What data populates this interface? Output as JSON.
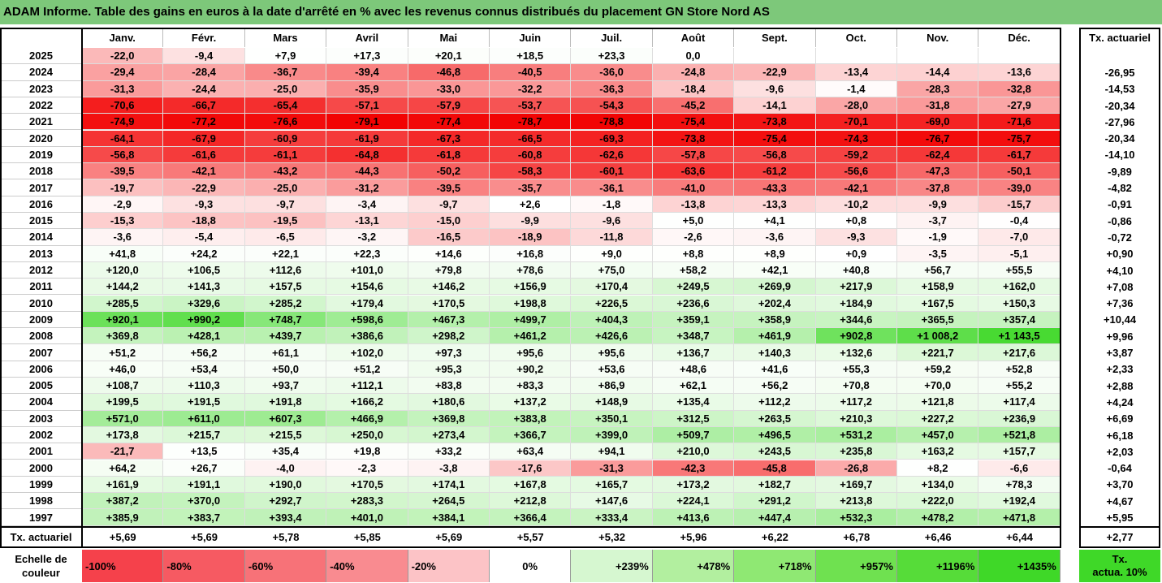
{
  "title": "ADAM Informe. Table des gains en euros à la date d'arrêté en % avec les revenus connus distribués du placement GN Store Nord AS",
  "chart_data": {
    "type": "table",
    "columns": [
      "Janv.",
      "Févr.",
      "Mars",
      "Avril",
      "Mai",
      "Juin",
      "Juil.",
      "Août",
      "Sept.",
      "Oct.",
      "Nov.",
      "Déc."
    ],
    "tx_header": "Tx. actuariel",
    "rows": [
      {
        "year": "2025",
        "values": [
          "-22,0",
          "-9,4",
          "+7,9",
          "+17,3",
          "+20,1",
          "+18,5",
          "+23,3",
          "0,0",
          "",
          "",
          "",
          ""
        ],
        "tx": ""
      },
      {
        "year": "2024",
        "values": [
          "-29,4",
          "-28,4",
          "-36,7",
          "-39,4",
          "-46,8",
          "-40,5",
          "-36,0",
          "-24,8",
          "-22,9",
          "-13,4",
          "-14,4",
          "-13,6"
        ],
        "tx": "-26,95"
      },
      {
        "year": "2023",
        "values": [
          "-31,3",
          "-24,4",
          "-25,0",
          "-35,9",
          "-33,0",
          "-32,2",
          "-36,3",
          "-18,4",
          "-9,6",
          "-1,4",
          "-28,3",
          "-32,8"
        ],
        "tx": "-14,53"
      },
      {
        "year": "2022",
        "values": [
          "-70,6",
          "-66,7",
          "-65,4",
          "-57,1",
          "-57,9",
          "-53,7",
          "-54,3",
          "-45,2",
          "-14,1",
          "-28,0",
          "-31,8",
          "-27,9"
        ],
        "tx": "-20,34"
      },
      {
        "year": "2021",
        "values": [
          "-74,9",
          "-77,2",
          "-76,6",
          "-79,1",
          "-77,4",
          "-78,7",
          "-78,8",
          "-75,4",
          "-73,8",
          "-70,1",
          "-69,0",
          "-71,6"
        ],
        "tx": "-27,96"
      },
      {
        "year": "2020",
        "values": [
          "-64,1",
          "-67,9",
          "-60,9",
          "-61,9",
          "-67,3",
          "-66,5",
          "-69,3",
          "-73,8",
          "-75,4",
          "-74,3",
          "-76,7",
          "-75,7"
        ],
        "tx": "-20,34"
      },
      {
        "year": "2019",
        "values": [
          "-56,8",
          "-61,6",
          "-61,1",
          "-64,8",
          "-61,8",
          "-60,8",
          "-62,6",
          "-57,8",
          "-56,8",
          "-59,2",
          "-62,4",
          "-61,7"
        ],
        "tx": "-14,10"
      },
      {
        "year": "2018",
        "values": [
          "-39,5",
          "-42,1",
          "-43,2",
          "-44,3",
          "-50,2",
          "-58,3",
          "-60,1",
          "-63,6",
          "-61,2",
          "-56,6",
          "-47,3",
          "-50,1"
        ],
        "tx": "-9,89"
      },
      {
        "year": "2017",
        "values": [
          "-19,7",
          "-22,9",
          "-25,0",
          "-31,2",
          "-39,5",
          "-35,7",
          "-36,1",
          "-41,0",
          "-43,3",
          "-42,1",
          "-37,8",
          "-39,0"
        ],
        "tx": "-4,82"
      },
      {
        "year": "2016",
        "values": [
          "-2,9",
          "-9,3",
          "-9,7",
          "-3,4",
          "-9,7",
          "+2,6",
          "-1,8",
          "-13,8",
          "-13,3",
          "-10,2",
          "-9,9",
          "-15,7"
        ],
        "tx": "-0,91"
      },
      {
        "year": "2015",
        "values": [
          "-15,3",
          "-18,8",
          "-19,5",
          "-13,1",
          "-15,0",
          "-9,9",
          "-9,6",
          "+5,0",
          "+4,1",
          "+0,8",
          "-3,7",
          "-0,4"
        ],
        "tx": "-0,86"
      },
      {
        "year": "2014",
        "values": [
          "-3,6",
          "-5,4",
          "-6,5",
          "-3,2",
          "-16,5",
          "-18,9",
          "-11,8",
          "-2,6",
          "-3,6",
          "-9,3",
          "-1,9",
          "-7,0"
        ],
        "tx": "-0,72"
      },
      {
        "year": "2013",
        "values": [
          "+41,8",
          "+24,2",
          "+22,1",
          "+22,3",
          "+14,6",
          "+16,8",
          "+9,0",
          "+8,8",
          "+8,9",
          "+0,9",
          "-3,5",
          "-5,1"
        ],
        "tx": "+0,90"
      },
      {
        "year": "2012",
        "values": [
          "+120,0",
          "+106,5",
          "+112,6",
          "+101,0",
          "+79,8",
          "+78,6",
          "+75,0",
          "+58,2",
          "+42,1",
          "+40,8",
          "+56,7",
          "+55,5"
        ],
        "tx": "+4,10"
      },
      {
        "year": "2011",
        "values": [
          "+144,2",
          "+141,3",
          "+157,5",
          "+154,6",
          "+146,2",
          "+156,9",
          "+170,4",
          "+249,5",
          "+269,9",
          "+217,9",
          "+158,9",
          "+162,0"
        ],
        "tx": "+7,08"
      },
      {
        "year": "2010",
        "values": [
          "+285,5",
          "+329,6",
          "+285,2",
          "+179,4",
          "+170,5",
          "+198,8",
          "+226,5",
          "+236,6",
          "+202,4",
          "+184,9",
          "+167,5",
          "+150,3"
        ],
        "tx": "+7,36"
      },
      {
        "year": "2009",
        "values": [
          "+920,1",
          "+990,2",
          "+748,7",
          "+598,6",
          "+467,3",
          "+499,7",
          "+404,3",
          "+359,1",
          "+358,9",
          "+344,6",
          "+365,5",
          "+357,4"
        ],
        "tx": "+10,44"
      },
      {
        "year": "2008",
        "values": [
          "+369,8",
          "+428,1",
          "+439,7",
          "+386,6",
          "+298,2",
          "+461,2",
          "+426,6",
          "+348,7",
          "+461,9",
          "+902,8",
          "+1 008,2",
          "+1 143,5"
        ],
        "tx": "+9,96"
      },
      {
        "year": "2007",
        "values": [
          "+51,2",
          "+56,2",
          "+61,1",
          "+102,0",
          "+97,3",
          "+95,6",
          "+95,6",
          "+136,7",
          "+140,3",
          "+132,6",
          "+221,7",
          "+217,6"
        ],
        "tx": "+3,87"
      },
      {
        "year": "2006",
        "values": [
          "+46,0",
          "+53,4",
          "+50,0",
          "+51,2",
          "+95,3",
          "+90,2",
          "+53,6",
          "+48,6",
          "+41,6",
          "+55,3",
          "+59,2",
          "+52,8"
        ],
        "tx": "+2,33"
      },
      {
        "year": "2005",
        "values": [
          "+108,7",
          "+110,3",
          "+93,7",
          "+112,1",
          "+83,8",
          "+83,3",
          "+86,9",
          "+62,1",
          "+56,2",
          "+70,8",
          "+70,0",
          "+55,2"
        ],
        "tx": "+2,88"
      },
      {
        "year": "2004",
        "values": [
          "+199,5",
          "+191,5",
          "+191,8",
          "+166,2",
          "+180,6",
          "+137,2",
          "+148,9",
          "+135,4",
          "+112,2",
          "+117,2",
          "+121,8",
          "+117,4"
        ],
        "tx": "+4,24"
      },
      {
        "year": "2003",
        "values": [
          "+571,0",
          "+611,0",
          "+607,3",
          "+466,9",
          "+369,8",
          "+383,8",
          "+350,1",
          "+312,5",
          "+263,5",
          "+210,3",
          "+227,2",
          "+236,9"
        ],
        "tx": "+6,69"
      },
      {
        "year": "2002",
        "values": [
          "+173,8",
          "+215,7",
          "+215,5",
          "+250,0",
          "+273,4",
          "+366,7",
          "+399,0",
          "+509,7",
          "+496,5",
          "+531,2",
          "+457,0",
          "+521,8"
        ],
        "tx": "+6,18"
      },
      {
        "year": "2001",
        "values": [
          "-21,7",
          "+13,5",
          "+35,4",
          "+19,8",
          "+33,2",
          "+63,4",
          "+94,1",
          "+210,0",
          "+243,5",
          "+235,8",
          "+163,2",
          "+157,7"
        ],
        "tx": "+2,03"
      },
      {
        "year": "2000",
        "values": [
          "+64,2",
          "+26,7",
          "-4,0",
          "-2,3",
          "-3,8",
          "-17,6",
          "-31,3",
          "-42,3",
          "-45,8",
          "-26,8",
          "+8,2",
          "-6,6"
        ],
        "tx": "-0,64"
      },
      {
        "year": "1999",
        "values": [
          "+161,9",
          "+191,1",
          "+190,0",
          "+170,5",
          "+174,1",
          "+167,8",
          "+165,7",
          "+173,2",
          "+182,7",
          "+169,7",
          "+134,0",
          "+78,3"
        ],
        "tx": "+3,70"
      },
      {
        "year": "1998",
        "values": [
          "+387,2",
          "+370,0",
          "+292,7",
          "+283,3",
          "+264,5",
          "+212,8",
          "+147,6",
          "+224,1",
          "+291,2",
          "+213,8",
          "+222,0",
          "+192,4"
        ],
        "tx": "+4,67"
      },
      {
        "year": "1997",
        "values": [
          "+385,9",
          "+383,7",
          "+393,4",
          "+401,0",
          "+384,1",
          "+366,4",
          "+333,4",
          "+413,6",
          "+447,4",
          "+532,3",
          "+478,2",
          "+471,8"
        ],
        "tx": "+5,95"
      }
    ],
    "footer": {
      "label": "Tx. actuariel",
      "values": [
        "+5,69",
        "+5,69",
        "+5,78",
        "+5,85",
        "+5,69",
        "+5,57",
        "+5,32",
        "+5,96",
        "+6,22",
        "+6,78",
        "+6,46",
        "+6,44"
      ],
      "tx": "+2,77"
    },
    "scale": {
      "label_line1": "Echelle de",
      "label_line2": "couleur",
      "items": [
        {
          "text": "-100%",
          "align": "left",
          "color": "#f5414b"
        },
        {
          "text": "-80%",
          "align": "left",
          "color": "#f65a62"
        },
        {
          "text": "-60%",
          "align": "left",
          "color": "#f77278"
        },
        {
          "text": "-40%",
          "align": "left",
          "color": "#f98b90"
        },
        {
          "text": "-20%",
          "align": "left",
          "color": "#fcc3c6"
        },
        {
          "text": "0%",
          "align": "center",
          "color": "#ffffff"
        },
        {
          "text": "+239%",
          "align": "right",
          "color": "#d6f7d0"
        },
        {
          "text": "+478%",
          "align": "right",
          "color": "#b2ef9f"
        },
        {
          "text": "+718%",
          "align": "right",
          "color": "#8fe873"
        },
        {
          "text": "+957%",
          "align": "right",
          "color": "#6fe150"
        },
        {
          "text": "+1196%",
          "align": "right",
          "color": "#56dc39"
        },
        {
          "text": "+1435%",
          "align": "right",
          "color": "#3fd828"
        }
      ],
      "legend_line1": "Tx.",
      "legend_line2": "actua. 10%",
      "legend_color": "#3fd828"
    },
    "colors": {
      "title_bg": "#7dc87a",
      "negative_max": "#f20000",
      "positive_max": "#3fd828"
    }
  }
}
